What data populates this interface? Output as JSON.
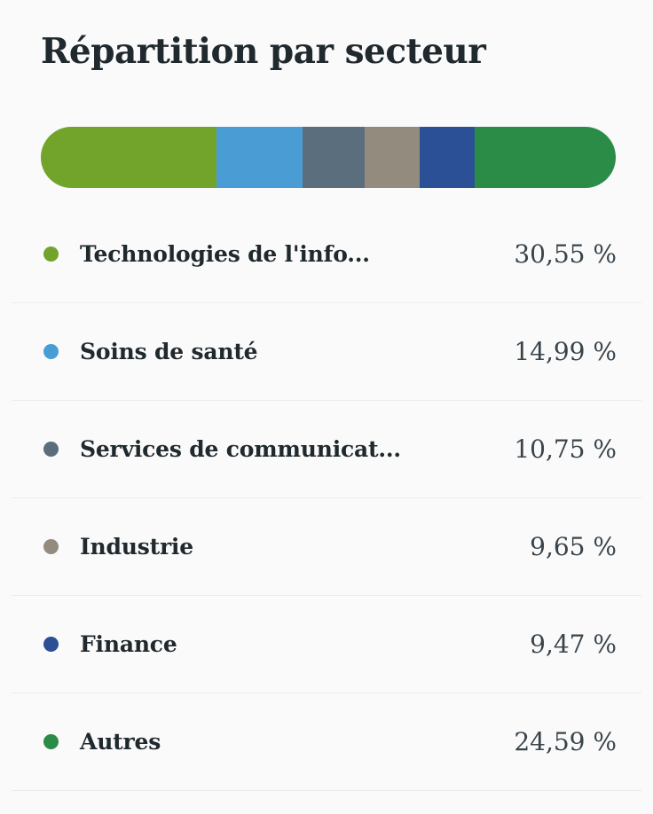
{
  "title": "Répartition par secteur",
  "chart_data": {
    "type": "bar",
    "variant": "horizontal-stacked-pill",
    "title": "Répartition par secteur",
    "unit": "%",
    "categories": [
      "Technologies de l'info...",
      "Soins de santé",
      "Services de communicat...",
      "Industrie",
      "Finance",
      "Autres"
    ],
    "values": [
      30.55,
      14.99,
      10.75,
      9.65,
      9.47,
      24.59
    ],
    "display_values": [
      "30,55 %",
      "14,99 %",
      "10,75 %",
      "9,65 %",
      "9,47 %",
      "24,59 %"
    ],
    "colors": [
      "#72A32B",
      "#4A9DD4",
      "#5A6E7D",
      "#938B7E",
      "#2C5095",
      "#2A8C46"
    ],
    "legend_position": "below"
  },
  "styles": {
    "background": "#FAFAFA",
    "divider": "#ECECEC",
    "title_color": "#20292E",
    "label_color": "#20292E",
    "value_color": "#39444B"
  }
}
